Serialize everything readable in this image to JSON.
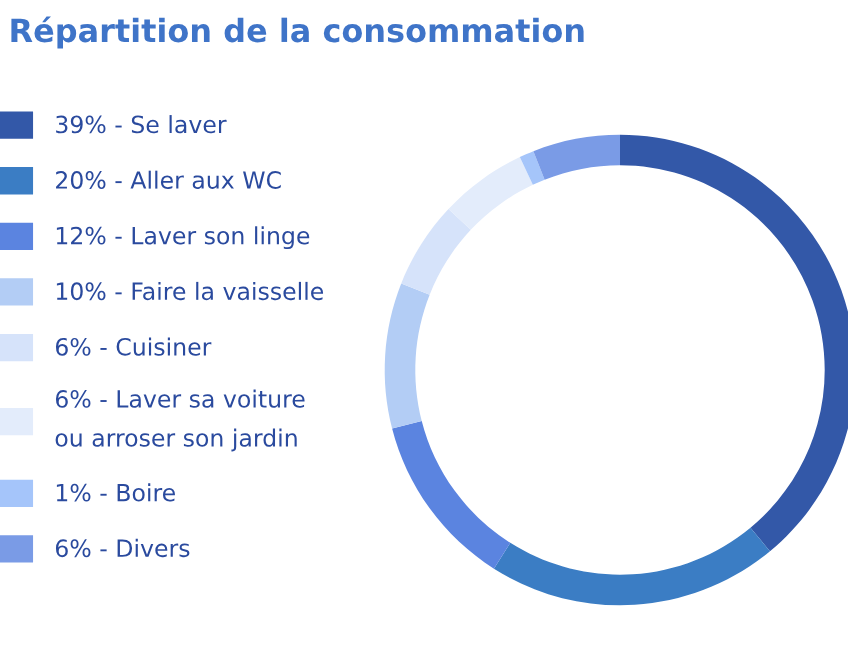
{
  "chart_data": {
    "type": "donut",
    "title": "Répartition de la consommation",
    "categories": [
      "39% - Se laver",
      "20% - Aller aux WC",
      "12% - Laver son linge",
      "10% - Faire la vaisselle",
      "6% - Cuisiner",
      "6% - Laver sa voiture\nou arroser son jardin",
      "1% - Boire",
      "6% - Divers"
    ],
    "values": [
      39,
      20,
      12,
      10,
      6,
      6,
      1,
      6
    ],
    "colors": [
      "#3358a8",
      "#3b7dc4",
      "#5b84e0",
      "#b3cdf5",
      "#d6e3fa",
      "#e3ecfb",
      "#a5c5fa",
      "#7a9be6"
    ],
    "legend": "left"
  }
}
